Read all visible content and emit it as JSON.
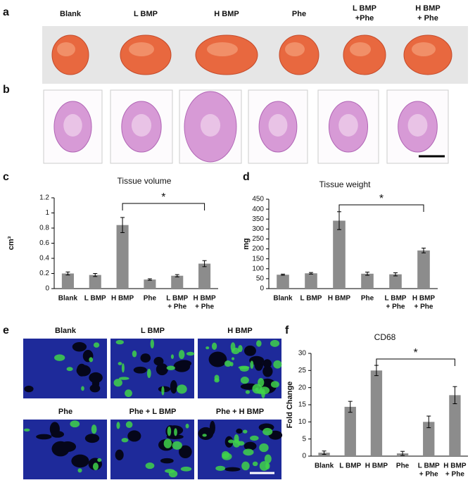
{
  "panel_labels": [
    "a",
    "b",
    "c",
    "d",
    "e",
    "f"
  ],
  "photo_labels": [
    [
      "Blank"
    ],
    [
      "L BMP"
    ],
    [
      "H BMP"
    ],
    [
      "Phe"
    ],
    [
      "L BMP",
      "+Phe"
    ],
    [
      "H BMP",
      "+ Phe"
    ]
  ],
  "if_labels": [
    "Blank",
    "L BMP",
    "H BMP",
    "Phe",
    "Phe + L BMP",
    "Phe + H BMP"
  ],
  "chart_data": [
    {
      "type": "bar",
      "title": "Tissue  volume",
      "y_label": "cm³",
      "annotation": "*",
      "color": "#8c8c8c",
      "categories": [
        [
          "Blank"
        ],
        [
          "L BMP"
        ],
        [
          "H BMP"
        ],
        [
          "Phe"
        ],
        [
          "L BMP",
          "+ Phe"
        ],
        [
          "H BMP",
          "+ Phe"
        ]
      ],
      "values": [
        0.2,
        0.18,
        0.84,
        0.12,
        0.17,
        0.33
      ],
      "errors": [
        0.02,
        0.02,
        0.1,
        0.01,
        0.015,
        0.04
      ],
      "ylim": [
        0,
        1.2
      ],
      "yticks": [
        0,
        0.2,
        0.4,
        0.6,
        0.8,
        1,
        1.2
      ]
    },
    {
      "type": "bar",
      "title": "Tissue weight",
      "y_label": "mg",
      "annotation": "*",
      "color": "#8c8c8c",
      "categories": [
        [
          "Blank"
        ],
        [
          "L BMP"
        ],
        [
          "H BMP"
        ],
        [
          "Phe"
        ],
        [
          "L BMP",
          "+ Phe"
        ],
        [
          "H BMP",
          "+ Phe"
        ]
      ],
      "values": [
        70,
        77,
        342,
        75,
        72,
        192
      ],
      "errors": [
        3,
        4,
        45,
        8,
        8,
        12
      ],
      "ylim": [
        0,
        450
      ],
      "yticks": [
        0,
        50,
        100,
        150,
        200,
        250,
        300,
        350,
        400,
        450
      ]
    },
    {
      "type": "bar",
      "title": "CD68",
      "y_label": "Fold Change",
      "annotation": "*",
      "color": "#8c8c8c",
      "categories": [
        [
          "Blank"
        ],
        [
          "L BMP"
        ],
        [
          "H BMP"
        ],
        [
          "Phe"
        ],
        [
          "L BMP",
          "+ Phe"
        ],
        [
          "H BMP",
          "+ Phe"
        ]
      ],
      "values": [
        1,
        14.4,
        25,
        0.8,
        10,
        17.8
      ],
      "errors": [
        0.5,
        1.6,
        1.5,
        0.6,
        1.7,
        2.5
      ],
      "ylim": [
        0,
        30
      ],
      "yticks": [
        0,
        5,
        10,
        15,
        20,
        25,
        30
      ]
    }
  ]
}
